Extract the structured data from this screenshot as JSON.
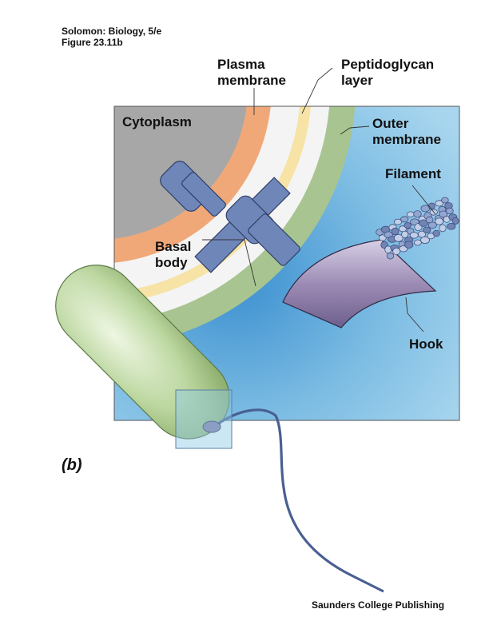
{
  "header": {
    "line1": "Solomon: Biology, 5/e",
    "line2": "Figure 23.11b"
  },
  "labels": {
    "plasma_membrane_1": "Plasma",
    "plasma_membrane_2": "membrane",
    "peptidoglycan_1": "Peptidoglycan",
    "peptidoglycan_2": "layer",
    "cytoplasm": "Cytoplasm",
    "outer_membrane_1": "Outer",
    "outer_membrane_2": "membrane",
    "filament": "Filament",
    "basal_body_1": "Basal",
    "basal_body_2": "body",
    "hook": "Hook"
  },
  "panel_label": "(b)",
  "publisher": "Saunders College Publishing",
  "colors": {
    "background_fluid": "#8ec9e6",
    "cytoplasm": "#a7a7a7",
    "plasma_membrane": "#f0a878",
    "periplasm": "#f4f4f4",
    "peptidoglycan": "#f7e3a6",
    "outer_membrane": "#a8c490",
    "basal_body": "#6f86b8",
    "hook": "#9c8cb5",
    "filament": "#93a6cf",
    "bacterium": "#bcd7a0",
    "flagellum_line": "#5a72a8"
  }
}
